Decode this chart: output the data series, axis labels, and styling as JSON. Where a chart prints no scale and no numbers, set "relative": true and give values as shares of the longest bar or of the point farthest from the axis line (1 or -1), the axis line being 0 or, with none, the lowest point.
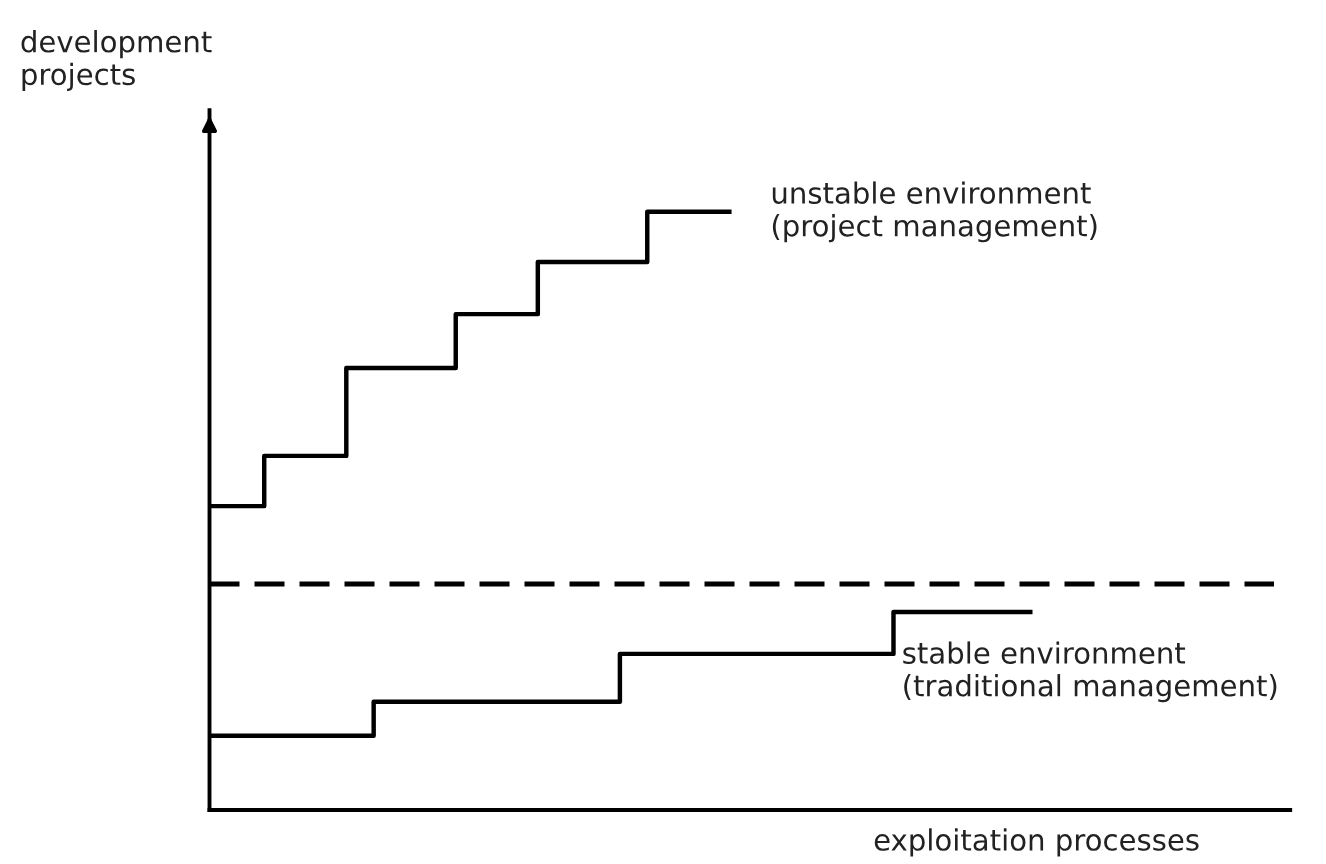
{
  "chart_data": {
    "type": "step",
    "relative": true,
    "xlabel": "exploitation processes",
    "ylabel": "development\nprojects",
    "line_style": "solid",
    "marker": "none",
    "legend": false,
    "tick_labels": false,
    "categories": [
      null,
      null,
      null,
      null,
      null,
      null,
      null,
      null,
      null,
      null,
      null,
      null,
      null,
      null,
      null,
      null,
      null,
      null,
      null,
      null,
      null,
      null,
      null,
      null,
      null,
      null,
      null,
      null,
      null,
      null,
      null,
      null,
      null,
      null,
      null,
      null,
      null,
      null,
      null,
      null
    ],
    "series": [
      {
        "name": "unstable environment\n(project management)",
        "color": "#000000",
        "values": [
          0.508,
          0.508,
          0.592,
          0.592,
          0.592,
          0.739,
          0.739,
          0.739,
          0.739,
          0.829,
          0.829,
          0.829,
          0.916,
          0.916,
          0.916,
          0.916,
          1,
          1,
          1,
          1,
          null,
          null,
          null,
          null,
          null,
          null,
          null,
          null,
          null,
          null,
          null,
          null,
          null,
          null,
          null,
          null,
          null,
          null,
          null,
          null
        ]
      },
      {
        "name": "stable environment\n(traditional management)",
        "color": "#000000",
        "values": [
          0.124,
          0.124,
          0.124,
          0.124,
          0.124,
          0.124,
          0.181,
          0.181,
          0.181,
          0.181,
          0.181,
          0.181,
          0.181,
          0.181,
          0.181,
          0.261,
          0.261,
          0.261,
          0.261,
          0.261,
          0.261,
          0.261,
          0.261,
          0.261,
          0.261,
          0.331,
          0.331,
          0.331,
          0.331,
          0.331,
          0.331,
          null,
          null,
          null,
          null,
          null,
          null,
          null,
          null,
          null
        ]
      }
    ],
    "ref_lines": [
      {
        "axis": "y",
        "value": 0.378,
        "label": null,
        "color": "#000000",
        "line_style": "dashed"
      }
    ]
  }
}
